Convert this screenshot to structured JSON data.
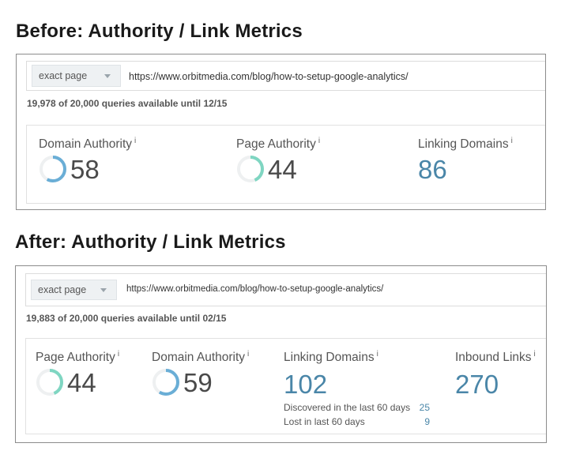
{
  "before": {
    "heading": "Before: Authority / Link Metrics",
    "scope_label": "exact page",
    "url": "https://www.orbitmedia.com/blog/how-to-setup-google-analytics/",
    "quota": "19,978 of 20,000 queries available until 12/15",
    "metrics": {
      "domain_authority": {
        "label": "Domain Authority",
        "info": "i",
        "value": "58",
        "score": 58,
        "ring_color": "#6aaed6"
      },
      "page_authority": {
        "label": "Page Authority",
        "info": "i",
        "value": "44",
        "score": 44,
        "ring_color": "#7fd6c2"
      },
      "linking_domains": {
        "label": "Linking Domains",
        "info": "i",
        "value": "86"
      }
    }
  },
  "after": {
    "heading": "After: Authority / Link Metrics",
    "scope_label": "exact page",
    "url": "https://www.orbitmedia.com/blog/how-to-setup-google-analytics/",
    "quota": "19,883 of 20,000 queries available until 02/15",
    "metrics": {
      "page_authority": {
        "label": "Page Authority",
        "info": "i",
        "value": "44",
        "score": 44,
        "ring_color": "#7fd6c2"
      },
      "domain_authority": {
        "label": "Domain Authority",
        "info": "i",
        "value": "59",
        "score": 59,
        "ring_color": "#6aaed6"
      },
      "linking_domains": {
        "label": "Linking Domains",
        "info": "i",
        "value": "102",
        "discovered_label": "Discovered in the last 60 days",
        "discovered_value": "25",
        "lost_label": "Lost in last 60 days",
        "lost_value": "9"
      },
      "inbound_links": {
        "label": "Inbound Links",
        "info": "i",
        "value": "270"
      }
    }
  },
  "colors": {
    "accent": "#4a86a8",
    "ring_track": "#eef0f1"
  }
}
